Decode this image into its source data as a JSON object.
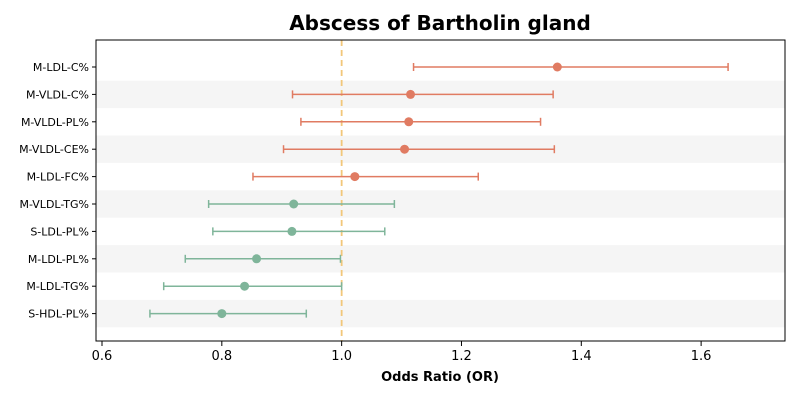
{
  "chart_data": {
    "type": "forest",
    "title": "Abscess of Bartholin gland",
    "xlabel": "Odds Ratio (OR)",
    "ylabel": "",
    "xlim": [
      0.59,
      1.74
    ],
    "xticks": [
      0.6,
      0.8,
      1.0,
      1.2,
      1.4,
      1.6
    ],
    "xtick_labels": [
      "0.6",
      "0.8",
      "1.0",
      "1.2",
      "1.4",
      "1.6"
    ],
    "reference_line": 1.0,
    "alternating_row_shading": true,
    "grid": false,
    "colors": {
      "positive": "#e07b62",
      "negative": "#7fb59a",
      "reference_line": "#f2c77a",
      "row_shading": "#f5f5f5"
    },
    "rows": [
      {
        "label": "M-LDL-C%",
        "or": 1.36,
        "lower": 1.12,
        "upper": 1.645
      },
      {
        "label": "M-VLDL-C%",
        "or": 1.115,
        "lower": 0.918,
        "upper": 1.353
      },
      {
        "label": "M-VLDL-PL%",
        "or": 1.112,
        "lower": 0.932,
        "upper": 1.332
      },
      {
        "label": "M-VLDL-CE%",
        "or": 1.105,
        "lower": 0.903,
        "upper": 1.355
      },
      {
        "label": "M-LDL-FC%",
        "or": 1.022,
        "lower": 0.852,
        "upper": 1.228
      },
      {
        "label": "M-VLDL-TG%",
        "or": 0.92,
        "lower": 0.778,
        "upper": 1.088
      },
      {
        "label": "S-LDL-PL%",
        "or": 0.917,
        "lower": 0.785,
        "upper": 1.072
      },
      {
        "label": "M-LDL-PL%",
        "or": 0.858,
        "lower": 0.739,
        "upper": 0.998
      },
      {
        "label": "M-LDL-TG%",
        "or": 0.838,
        "lower": 0.703,
        "upper": 1.0
      },
      {
        "label": "S-HDL-PL%",
        "or": 0.8,
        "lower": 0.68,
        "upper": 0.941
      }
    ]
  }
}
